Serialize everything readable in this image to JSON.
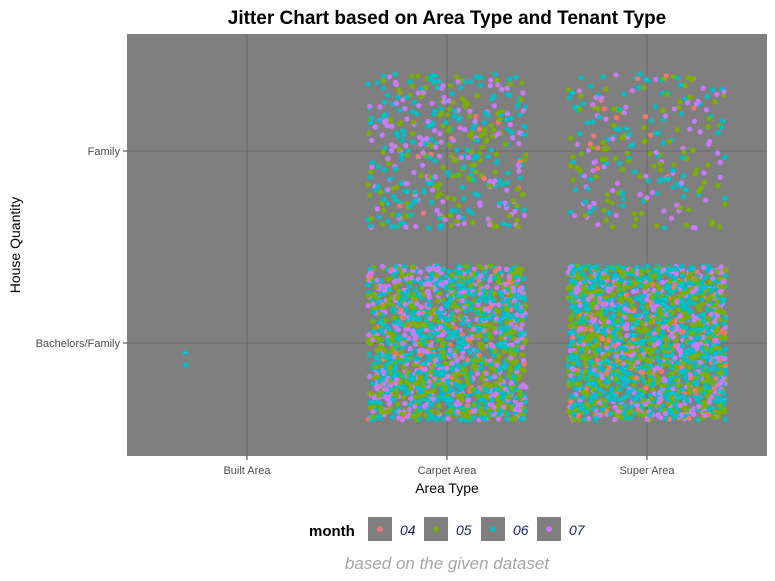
{
  "chart_data": {
    "type": "scatter",
    "subtype": "jitter",
    "title": "Jitter Chart based on Area Type and Tenant Type",
    "xlabel": "Area Type",
    "ylabel": "House Quantity",
    "x_categories": [
      "Built Area",
      "Carpet Area",
      "Super Area"
    ],
    "y_categories": [
      "Bachelors/Family",
      "Family"
    ],
    "grid": true,
    "panel_background": "#7f7f7f",
    "legend": {
      "title": "month",
      "position": "bottom",
      "entries": [
        {
          "label": "04",
          "color": "#F8766D"
        },
        {
          "label": "05",
          "color": "#7CAE00"
        },
        {
          "label": "06",
          "color": "#00BFC4"
        },
        {
          "label": "07",
          "color": "#C77CFF"
        }
      ]
    },
    "caption": "based on the given dataset",
    "groups": [
      {
        "x": "Built Area",
        "y": "Bachelors/Family",
        "approx_points": 2,
        "month_mix": {
          "04": 0,
          "05": 0,
          "06": 2,
          "07": 0
        }
      },
      {
        "x": "Carpet Area",
        "y": "Family",
        "approx_points": 450,
        "month_mix": {
          "04": 0.03,
          "05": 0.32,
          "06": 0.38,
          "07": 0.27
        }
      },
      {
        "x": "Super Area",
        "y": "Family",
        "approx_points": 260,
        "month_mix": {
          "04": 0.05,
          "05": 0.33,
          "06": 0.38,
          "07": 0.24
        }
      },
      {
        "x": "Carpet Area",
        "y": "Bachelors/Family",
        "approx_points": 1900,
        "month_mix": {
          "04": 0.03,
          "05": 0.31,
          "06": 0.42,
          "07": 0.24
        }
      },
      {
        "x": "Super Area",
        "y": "Bachelors/Family",
        "approx_points": 2300,
        "month_mix": {
          "04": 0.05,
          "05": 0.33,
          "06": 0.42,
          "07": 0.2
        }
      }
    ]
  }
}
